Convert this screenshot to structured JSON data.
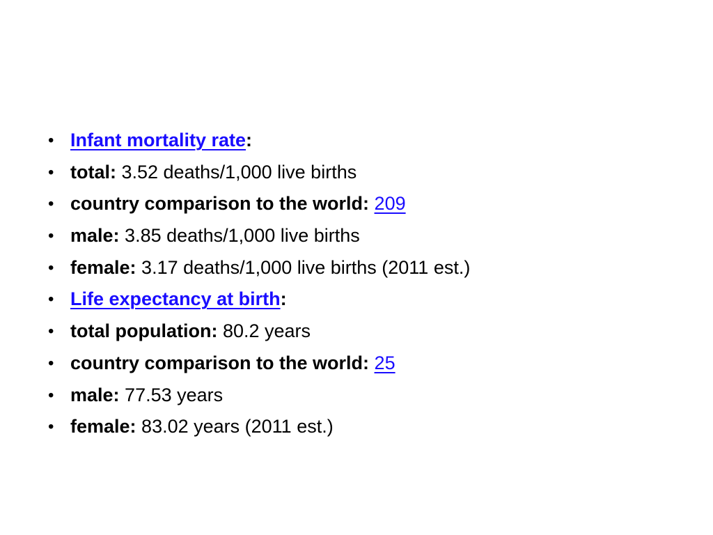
{
  "colors": {
    "link": "#1a0dff",
    "text": "#000000",
    "background": "#ffffff"
  },
  "bullet_glyph": "•",
  "items": [
    {
      "link": "Infant mortality rate",
      "suffix": ":"
    },
    {
      "label": "total:",
      "value": " 3.52 deaths/1,000 live births"
    },
    {
      "label": "country comparison to the world:",
      "spacer": " ",
      "link": "209"
    },
    {
      "label": "male:",
      "value": " 3.85 deaths/1,000 live births"
    },
    {
      "label": "female:",
      "value": " 3.17 deaths/1,000 live births (2011 est.)"
    },
    {
      "link": "Life expectancy at birth",
      "suffix": ":"
    },
    {
      "label": "total population:",
      "value": " 80.2 years"
    },
    {
      "label": "country comparison to the world:",
      "spacer": " ",
      "link": "25"
    },
    {
      "label": "male:",
      "value": " 77.53 years"
    },
    {
      "label": "female:",
      "value": " 83.02 years (2011 est.)"
    }
  ]
}
